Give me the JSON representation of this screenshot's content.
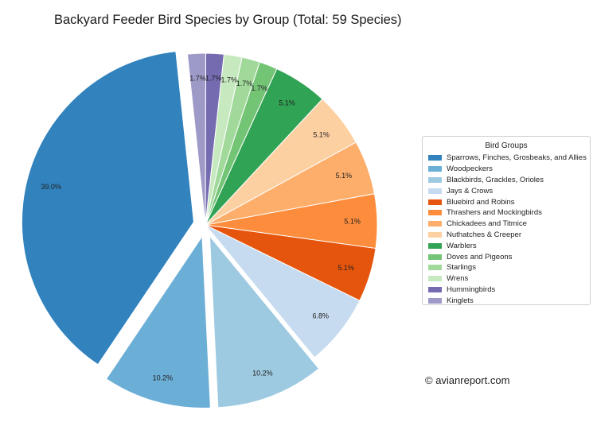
{
  "chart_data": {
    "type": "pie",
    "title": "Backyard Feeder Bird Species by Group (Total: 59 Species)",
    "legend_title": "Bird Groups",
    "legend_position": "right",
    "slices": [
      {
        "label": "Sparrows, Finches, Grosbeaks, and Allies",
        "value": 39.0,
        "display": "39.0%",
        "color": "#3182bd",
        "exploded": true
      },
      {
        "label": "Woodpeckers",
        "value": 10.2,
        "display": "10.2%",
        "color": "#6baed6",
        "exploded": true
      },
      {
        "label": "Blackbirds, Grackles, Orioles",
        "value": 10.2,
        "display": "10.2%",
        "color": "#9ecae1",
        "exploded": true
      },
      {
        "label": "Jays & Crows",
        "value": 6.8,
        "display": "6.8%",
        "color": "#c6dbef",
        "exploded": false
      },
      {
        "label": "Bluebird and Robins",
        "value": 5.1,
        "display": "5.1%",
        "color": "#e6550d",
        "exploded": false
      },
      {
        "label": "Thrashers and Mockingbirds",
        "value": 5.1,
        "display": "5.1%",
        "color": "#fd8d3c",
        "exploded": false
      },
      {
        "label": "Chickadees and Titmice",
        "value": 5.1,
        "display": "5.1%",
        "color": "#fdae6b",
        "exploded": false
      },
      {
        "label": "Nuthatches & Creeper",
        "value": 5.1,
        "display": "5.1%",
        "color": "#fdd0a2",
        "exploded": false
      },
      {
        "label": "Warblers",
        "value": 5.1,
        "display": "5.1%",
        "color": "#31a354",
        "exploded": false
      },
      {
        "label": "Doves and Pigeons",
        "value": 1.7,
        "display": "1.7%",
        "color": "#74c476",
        "exploded": false
      },
      {
        "label": "Starlings",
        "value": 1.7,
        "display": "1.7%",
        "color": "#a1d99b",
        "exploded": false
      },
      {
        "label": "Wrens",
        "value": 1.7,
        "display": "1.7%",
        "color": "#c7e9c0",
        "exploded": false
      },
      {
        "label": "Hummingbirds",
        "value": 1.7,
        "display": "1.7%",
        "color": "#756bb1",
        "exploded": false
      },
      {
        "label": "Kinglets",
        "value": 1.7,
        "display": "1.7%",
        "color": "#9e9ac8",
        "exploded": false
      }
    ]
  },
  "source": "© avianreport.com"
}
